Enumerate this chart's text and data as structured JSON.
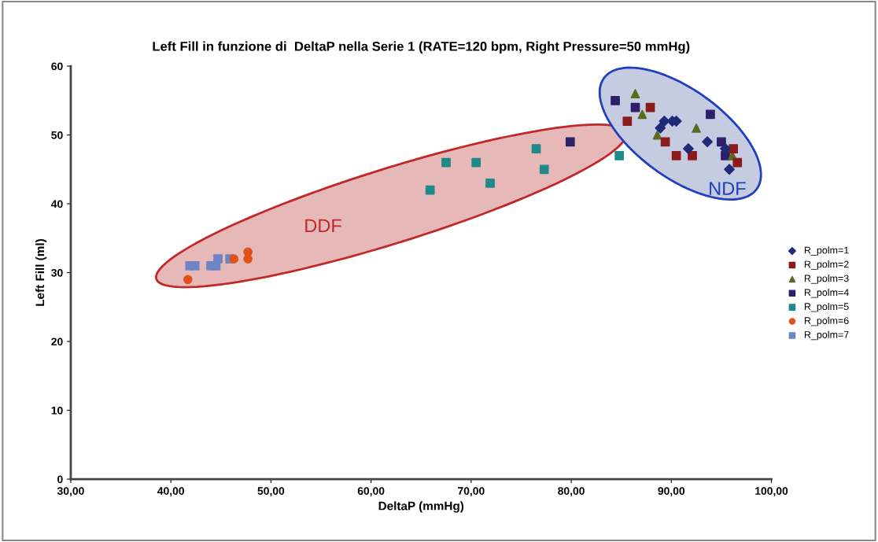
{
  "chart_data": {
    "type": "scatter",
    "title": "Left Fill in funzione di  DeltaP nella Serie 1 (RATE=120 bpm, Right Pressure=50 mmHg)",
    "xlabel": "DeltaP (mmHg)",
    "ylabel": "Left Fill (ml)",
    "xlim": [
      30,
      100
    ],
    "ylim": [
      0,
      60
    ],
    "xticks": [
      {
        "value": 30,
        "label": "30,00"
      },
      {
        "value": 40,
        "label": "40,00"
      },
      {
        "value": 50,
        "label": "50,00"
      },
      {
        "value": 60,
        "label": "60,00"
      },
      {
        "value": 70,
        "label": "70,00"
      },
      {
        "value": 80,
        "label": "80,00"
      },
      {
        "value": 90,
        "label": "90,00"
      },
      {
        "value": 100,
        "label": "100,00"
      }
    ],
    "yticks": [
      0,
      10,
      20,
      30,
      40,
      50,
      60
    ],
    "grid": false,
    "legend": "right",
    "series": [
      {
        "name": "R_polm=1",
        "color": "#1f2a7a",
        "marker": "diamond",
        "x": [
          88.9,
          89.3,
          90.1,
          90.5,
          91.7,
          93.6,
          95.4,
          95.8
        ],
        "values": [
          51,
          52,
          52,
          52,
          48,
          49,
          48,
          45
        ]
      },
      {
        "name": "R_polm=2",
        "color": "#8b1a1a",
        "marker": "square",
        "x": [
          85.6,
          87.9,
          89.4,
          90.5,
          92.1,
          96.2,
          96.6
        ],
        "values": [
          52,
          54,
          49,
          47,
          47,
          48,
          46
        ]
      },
      {
        "name": "R_polm=3",
        "color": "#5a6b1f",
        "marker": "triangle",
        "x": [
          86.4,
          87.1,
          92.5,
          88.6,
          96.1
        ],
        "values": [
          56,
          53,
          51,
          50,
          47
        ]
      },
      {
        "name": "R_polm=4",
        "color": "#2e1f6b",
        "marker": "square",
        "x": [
          84.4,
          86.4,
          93.9,
          95.0,
          95.4,
          79.9
        ],
        "values": [
          55,
          54,
          53,
          49,
          47,
          49
        ]
      },
      {
        "name": "R_polm=5",
        "color": "#1f8a8a",
        "marker": "square",
        "x": [
          76.5,
          67.5,
          70.5,
          77.3,
          71.9,
          65.9,
          84.8
        ],
        "values": [
          48,
          46,
          46,
          45,
          43,
          42,
          47
        ]
      },
      {
        "name": "R_polm=6",
        "color": "#e0521a",
        "marker": "circle",
        "x": [
          41.7,
          47.7,
          47.7,
          46.3
        ],
        "values": [
          29,
          33,
          32,
          32
        ]
      },
      {
        "name": "R_polm=7",
        "color": "#6f84c4",
        "marker": "square",
        "x": [
          41.9,
          42.4,
          44.0,
          44.5,
          44.7,
          45.9
        ],
        "values": [
          31,
          31,
          31,
          31,
          32,
          32
        ]
      }
    ],
    "annotations": [
      "DDF",
      "NDF"
    ]
  }
}
